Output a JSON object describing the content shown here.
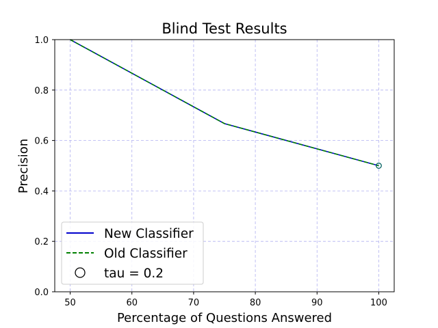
{
  "chart_data": {
    "type": "line",
    "title": "Blind Test Results",
    "xlabel": "Percentage of Questions Answered",
    "ylabel": "Precision",
    "xlim": [
      47.5,
      102.5
    ],
    "ylim": [
      0.0,
      1.0
    ],
    "x_ticks": [
      50,
      60,
      70,
      80,
      90,
      100
    ],
    "y_ticks": [
      0.0,
      0.2,
      0.4,
      0.6,
      0.8,
      1.0
    ],
    "x_tick_labels": [
      "50",
      "60",
      "70",
      "80",
      "90",
      "100"
    ],
    "y_tick_labels": [
      "0.0",
      "0.2",
      "0.4",
      "0.6",
      "0.8",
      "1.0"
    ],
    "grid": true,
    "legend_position": "lower-left",
    "series": [
      {
        "name": "New Classifier",
        "color": "#0000cc",
        "style": "solid",
        "x": [
          50,
          75,
          100
        ],
        "y": [
          1.0,
          0.667,
          0.5
        ]
      },
      {
        "name": "Old Classifier",
        "color": "#008000",
        "style": "dashed",
        "x": [
          50,
          75,
          100
        ],
        "y": [
          1.0,
          0.667,
          0.5
        ]
      }
    ],
    "markers": [
      {
        "name": "tau = 0.2",
        "x": 100,
        "y": 0.5,
        "shape": "open-circle",
        "color": "#006060"
      }
    ]
  }
}
